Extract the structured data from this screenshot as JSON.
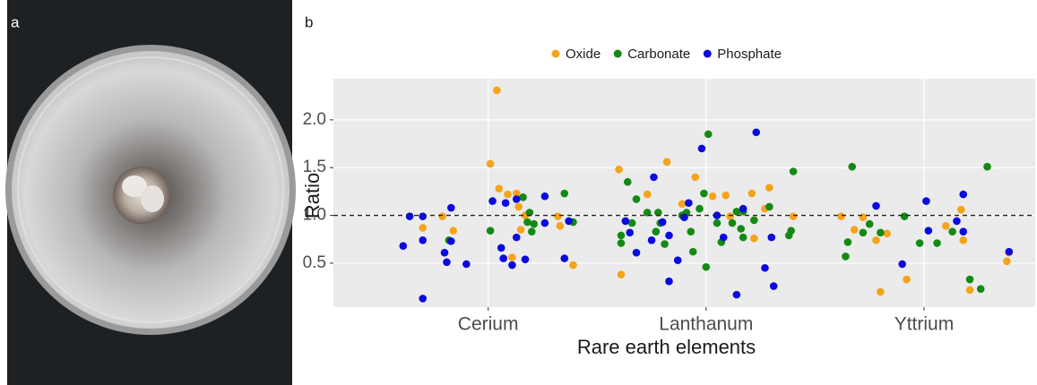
{
  "panel_labels": [
    "a",
    "b"
  ],
  "chart_data": {
    "type": "scatter",
    "x_label": "Rare earth elements",
    "y_label": "Ratio",
    "xlim": [
      0.29,
      3.51
    ],
    "xticks": [
      {
        "value": 1,
        "label": "Cerium"
      },
      {
        "value": 2,
        "label": "Lanthanum"
      },
      {
        "value": 3,
        "label": "Yttrium"
      }
    ],
    "ylim": [
      0.04,
      2.43
    ],
    "yticks": [
      {
        "value": 0.5,
        "label": "0.5"
      },
      {
        "value": 1,
        "label": "1.0"
      },
      {
        "value": 1.5,
        "label": "1.5"
      },
      {
        "value": 2,
        "label": "2.0"
      }
    ],
    "grid": true,
    "hline": 1,
    "legend": "top",
    "series": [
      {
        "name": "Oxide",
        "color": "#f5a31a",
        "x": [
          0.7,
          0.79,
          0.84,
          1.01,
          1.04,
          1.05,
          1.09,
          1.13,
          1.14,
          1.17,
          1.15,
          1.11,
          1.32,
          1.33,
          1.39,
          1.61,
          1.6,
          1.73,
          1.82,
          1.89,
          1.95,
          2.03,
          2.09,
          2.11,
          2.22,
          2.21,
          2.29,
          2.27,
          2.4,
          2.62,
          2.72,
          2.68,
          2.78,
          2.83,
          2.8,
          2.92,
          3.1,
          3.17,
          3.18,
          3.21,
          3.38,
          3.39
        ],
        "values": [
          0.87,
          0.99,
          0.84,
          1.54,
          2.31,
          1.28,
          1.22,
          1.23,
          1.09,
          1.0,
          0.85,
          0.56,
          0.99,
          0.89,
          0.48,
          0.38,
          1.48,
          1.22,
          1.56,
          1.12,
          1.4,
          1.2,
          1.21,
          0.99,
          0.76,
          1.23,
          1.29,
          1.07,
          0.99,
          0.99,
          0.98,
          0.85,
          0.74,
          0.81,
          0.2,
          0.33,
          0.89,
          1.06,
          0.74,
          0.22,
          0.52,
          0.61
        ]
      },
      {
        "name": "Carbonate",
        "color": "#138a13",
        "x": [
          0.82,
          1.01,
          1.16,
          1.18,
          1.19,
          1.2,
          1.21,
          1.35,
          1.39,
          1.61,
          1.61,
          1.64,
          1.66,
          1.68,
          1.73,
          1.77,
          1.78,
          1.79,
          1.81,
          1.89,
          1.91,
          1.93,
          1.94,
          1.97,
          1.99,
          2.01,
          2.0,
          2.05,
          2.07,
          2.12,
          2.14,
          2.16,
          2.17,
          2.17,
          2.22,
          2.29,
          2.38,
          2.39,
          2.4,
          2.64,
          2.65,
          2.67,
          2.72,
          2.75,
          2.8,
          2.91,
          2.98,
          3.06,
          3.13,
          3.21,
          3.26,
          3.29
        ],
        "values": [
          0.74,
          0.84,
          1.19,
          0.93,
          1.03,
          0.83,
          0.91,
          1.23,
          0.93,
          0.79,
          0.71,
          1.35,
          0.92,
          1.17,
          1.03,
          0.83,
          1.03,
          0.92,
          0.7,
          1.0,
          1.03,
          0.83,
          0.62,
          1.07,
          1.23,
          1.85,
          0.46,
          0.92,
          0.72,
          0.92,
          1.04,
          0.86,
          0.77,
          1.04,
          0.95,
          1.09,
          0.79,
          0.84,
          1.46,
          0.57,
          0.72,
          1.51,
          0.82,
          0.91,
          0.82,
          0.99,
          0.71,
          0.71,
          0.83,
          0.33,
          0.23,
          1.51
        ]
      },
      {
        "name": "Phosphate",
        "color": "#0a0ae0",
        "x": [
          0.61,
          0.64,
          0.7,
          0.7,
          0.7,
          0.8,
          0.81,
          0.83,
          0.83,
          0.9,
          1.02,
          1.06,
          1.07,
          1.08,
          1.11,
          1.13,
          1.13,
          1.17,
          1.26,
          1.26,
          1.35,
          1.37,
          1.63,
          1.65,
          1.68,
          1.75,
          1.76,
          1.8,
          1.83,
          1.83,
          1.87,
          1.9,
          1.92,
          1.98,
          2.05,
          2.08,
          2.14,
          2.17,
          2.23,
          2.27,
          2.3,
          2.31,
          2.78,
          2.9,
          3.01,
          3.02,
          3.15,
          3.18,
          3.18,
          3.39
        ],
        "values": [
          0.68,
          0.99,
          0.99,
          0.13,
          0.74,
          0.61,
          0.51,
          1.08,
          0.73,
          0.49,
          1.15,
          0.66,
          0.55,
          1.13,
          0.48,
          1.17,
          0.77,
          0.54,
          1.2,
          0.92,
          0.55,
          0.94,
          0.94,
          0.82,
          0.61,
          0.74,
          1.4,
          0.93,
          0.31,
          0.79,
          0.53,
          0.98,
          1.13,
          1.7,
          1.0,
          0.77,
          0.17,
          1.07,
          1.87,
          0.45,
          0.77,
          0.26,
          1.1,
          0.49,
          1.15,
          0.84,
          0.94,
          1.22,
          0.83,
          0.62
        ]
      }
    ]
  }
}
